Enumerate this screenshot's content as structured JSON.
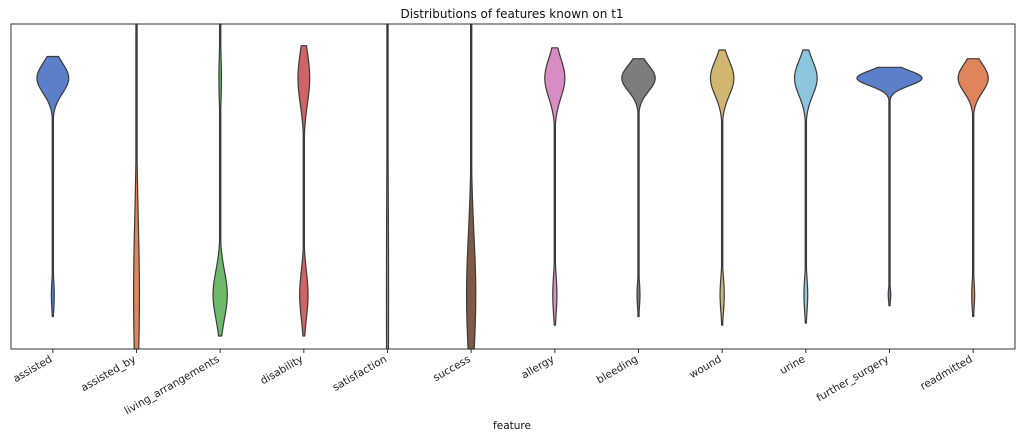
{
  "chart_data": {
    "type": "violin",
    "title": "Distributions of features known on t1",
    "xlabel": "feature",
    "ylabel": "",
    "ylim": [
      -0.25,
      1.25
    ],
    "y_ticks_shown": false,
    "grid": false,
    "legend": "none",
    "categories": [
      "assisted",
      "assisted_by",
      "living_arrangements",
      "disability",
      "satisfaction",
      "success",
      "allergy",
      "bleeding",
      "wound",
      "urine",
      "further_surgery",
      "readmitted"
    ],
    "series": [
      {
        "category": "assisted",
        "color": "#5b7fc8",
        "range": [
          -0.1,
          1.1
        ],
        "modes": [
          {
            "y": 1.0,
            "width": 0.38,
            "spread": 0.07
          },
          {
            "y": 0.0,
            "width": 0.035,
            "spread": 0.07
          }
        ]
      },
      {
        "category": "assisted_by",
        "color": "#e0845b",
        "range": [
          -0.25,
          1.25
        ],
        "modes": [
          {
            "y": 0.0,
            "width": 0.07,
            "spread": 0.35
          }
        ]
      },
      {
        "category": "living_arrangements",
        "color": "#6dbb6a",
        "range": [
          -0.19,
          1.25
        ],
        "modes": [
          {
            "y": 1.0,
            "width": 0.03,
            "spread": 0.12
          },
          {
            "y": 0.0,
            "width": 0.17,
            "spread": 0.11
          }
        ]
      },
      {
        "category": "disability",
        "color": "#cf6464",
        "range": [
          -0.19,
          1.15
        ],
        "modes": [
          {
            "y": 1.0,
            "width": 0.14,
            "spread": 0.12
          },
          {
            "y": 0.0,
            "width": 0.1,
            "spread": 0.11
          }
        ]
      },
      {
        "category": "satisfaction",
        "color": "#a28cc5",
        "range": [
          -0.25,
          1.25
        ],
        "modes": [
          {
            "y": 0.0,
            "width": 0.025,
            "spread": 0.6
          }
        ]
      },
      {
        "category": "success",
        "color": "#7e5a45",
        "range": [
          -0.25,
          1.25
        ],
        "modes": [
          {
            "y": 0.0,
            "width": 0.11,
            "spread": 0.28
          }
        ]
      },
      {
        "category": "allergy",
        "color": "#d98cc4",
        "range": [
          -0.14,
          1.14
        ],
        "modes": [
          {
            "y": 1.0,
            "width": 0.24,
            "spread": 0.09
          },
          {
            "y": 0.0,
            "width": 0.05,
            "spread": 0.09
          }
        ]
      },
      {
        "category": "bleeding",
        "color": "#7c7c7c",
        "range": [
          -0.1,
          1.09
        ],
        "modes": [
          {
            "y": 1.0,
            "width": 0.4,
            "spread": 0.06
          },
          {
            "y": 0.0,
            "width": 0.035,
            "spread": 0.06
          }
        ]
      },
      {
        "category": "wound",
        "color": "#d0b66e",
        "range": [
          -0.14,
          1.13
        ],
        "modes": [
          {
            "y": 1.0,
            "width": 0.28,
            "spread": 0.08
          },
          {
            "y": 0.0,
            "width": 0.05,
            "spread": 0.08
          }
        ]
      },
      {
        "category": "urine",
        "color": "#8cc5dd",
        "range": [
          -0.13,
          1.13
        ],
        "modes": [
          {
            "y": 1.0,
            "width": 0.27,
            "spread": 0.08
          },
          {
            "y": 0.0,
            "width": 0.045,
            "spread": 0.08
          }
        ]
      },
      {
        "category": "further_surgery",
        "color": "#5b7fc8",
        "range": [
          -0.05,
          1.05
        ],
        "modes": [
          {
            "y": 1.0,
            "width": 0.78,
            "spread": 0.035
          },
          {
            "y": 0.0,
            "width": 0.03,
            "spread": 0.035
          }
        ]
      },
      {
        "category": "readmitted",
        "color": "#e0845b",
        "range": [
          -0.1,
          1.09
        ],
        "modes": [
          {
            "y": 1.0,
            "width": 0.36,
            "spread": 0.065
          },
          {
            "y": 0.0,
            "width": 0.035,
            "spread": 0.065
          }
        ]
      }
    ]
  }
}
